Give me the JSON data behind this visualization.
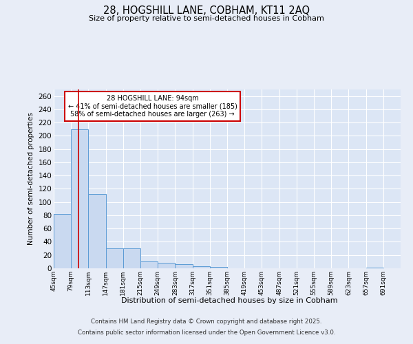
{
  "title": "28, HOGSHILL LANE, COBHAM, KT11 2AQ",
  "subtitle": "Size of property relative to semi-detached houses in Cobham",
  "xlabel": "Distribution of semi-detached houses by size in Cobham",
  "ylabel": "Number of semi-detached properties",
  "bins": [
    45,
    79,
    113,
    147,
    181,
    215,
    249,
    283,
    317,
    351,
    385,
    419,
    453,
    487,
    521,
    555,
    589,
    623,
    657,
    691,
    725
  ],
  "counts": [
    82,
    210,
    112,
    30,
    30,
    10,
    8,
    6,
    3,
    2,
    0,
    0,
    0,
    0,
    0,
    0,
    0,
    0,
    1,
    0
  ],
  "bar_color": "#c9d9f0",
  "bar_edge_color": "#5b9bd5",
  "red_line_x": 94,
  "annotation_title": "28 HOGSHILL LANE: 94sqm",
  "annotation_line1": "← 41% of semi-detached houses are smaller (185)",
  "annotation_line2": "58% of semi-detached houses are larger (263) →",
  "annotation_box_color": "#ffffff",
  "annotation_box_edge": "#cc0000",
  "red_line_color": "#cc0000",
  "ylim": [
    0,
    270
  ],
  "yticks": [
    0,
    20,
    40,
    60,
    80,
    100,
    120,
    140,
    160,
    180,
    200,
    220,
    240,
    260
  ],
  "bg_color": "#e8edf7",
  "plot_bg_color": "#dce6f5",
  "grid_color": "#ffffff",
  "footer_line1": "Contains HM Land Registry data © Crown copyright and database right 2025.",
  "footer_line2": "Contains public sector information licensed under the Open Government Licence v3.0."
}
